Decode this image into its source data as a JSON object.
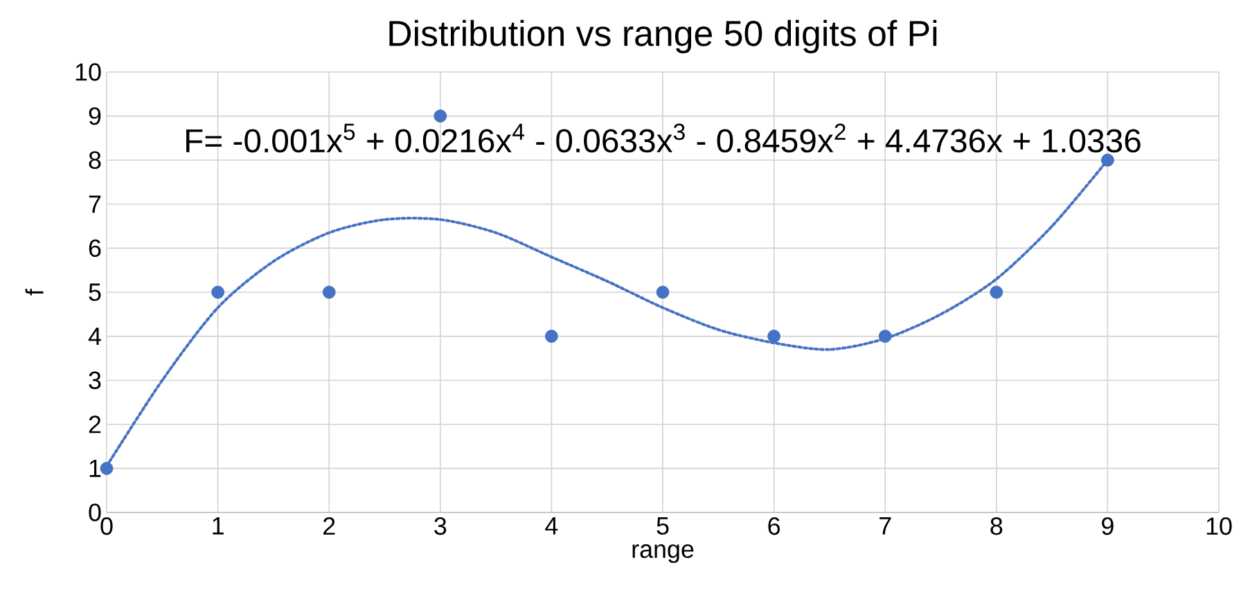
{
  "chart_data": {
    "type": "scatter",
    "title": "Distribution vs range 50 digits of Pi",
    "xlabel": "range",
    "ylabel": "f",
    "x": [
      0,
      1,
      2,
      3,
      4,
      5,
      6,
      7,
      8,
      9
    ],
    "series": [
      {
        "color": "#4472c4",
        "marker": "circle",
        "values": [
          1,
          5,
          5,
          9,
          4,
          5,
          4,
          4,
          5,
          8
        ]
      },
      {
        "type": "line",
        "color": "#4472c4",
        "marker": "none",
        "line_style": "dotted",
        "x": [
          0,
          0.5,
          1,
          1.5,
          2,
          2.5,
          3,
          3.5,
          4,
          4.5,
          5,
          5.5,
          6,
          6.5,
          7,
          7.5,
          8,
          8.5,
          9
        ],
        "values": [
          1.05,
          3.0,
          4.65,
          5.7,
          6.35,
          6.65,
          6.65,
          6.35,
          5.8,
          5.25,
          4.65,
          4.15,
          3.85,
          3.7,
          3.95,
          4.5,
          5.3,
          6.5,
          8.0
        ]
      }
    ],
    "annotations": [
      "F= -0.001x$^{5}$ + 0.0216x$^{4}$ - 0.0633x$^{3}$ - 0.8459x$^{2}$ + 4.4736x + 1.0336"
    ],
    "xlim": [
      0,
      10
    ],
    "ylim": [
      0,
      10
    ],
    "xticks": [
      0,
      1,
      2,
      3,
      4,
      5,
      6,
      7,
      8,
      9,
      10
    ],
    "yticks": [
      0,
      1,
      2,
      3,
      4,
      5,
      6,
      7,
      8,
      9,
      10
    ],
    "grid": true
  }
}
